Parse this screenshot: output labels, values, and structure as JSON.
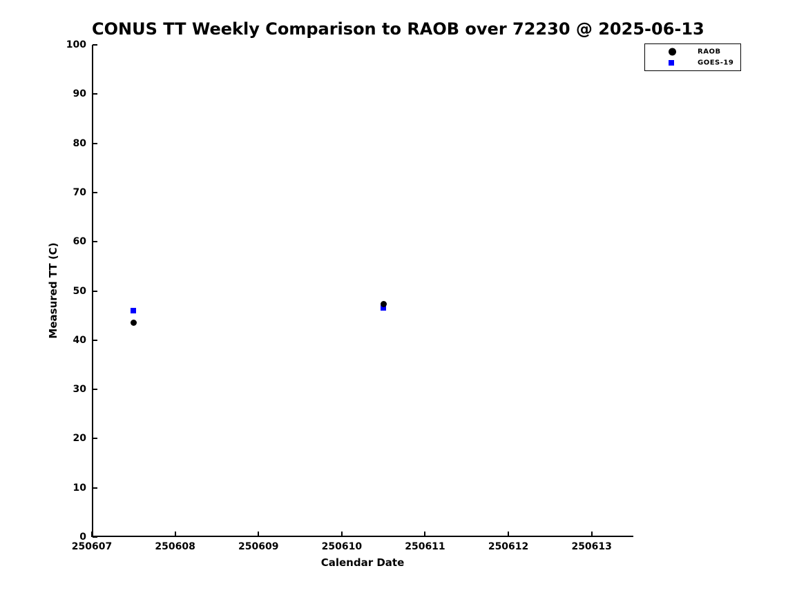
{
  "chart_data": {
    "type": "scatter",
    "title": "CONUS TT Weekly Comparison to RAOB over 72230 @ 2025-06-13",
    "xlabel": "Calendar Date",
    "ylabel": "Measured TT (C)",
    "xlim": [
      250607,
      250613.5
    ],
    "ylim": [
      0,
      100
    ],
    "x_ticks": [
      250607,
      250608,
      250609,
      250610,
      250611,
      250612,
      250613
    ],
    "y_ticks": [
      0,
      10,
      20,
      30,
      40,
      50,
      60,
      70,
      80,
      90,
      100
    ],
    "grid": false,
    "background_color": "#ffffff",
    "axis_color": "#000000",
    "text_color": "#000000",
    "legend_position": "outside-top-right",
    "series": [
      {
        "name": "GOES-19",
        "marker": "square",
        "color": "#0000ff",
        "marker_size": 8,
        "points": [
          {
            "x": 250607.5,
            "y": 46.0
          },
          {
            "x": 250610.5,
            "y": 46.5
          }
        ]
      },
      {
        "name": "RAOB",
        "marker": "circle",
        "color": "#000000",
        "marker_size": 9,
        "points": [
          {
            "x": 250607.5,
            "y": 43.5
          },
          {
            "x": 250610.5,
            "y": 47.3
          }
        ]
      }
    ],
    "legend": [
      {
        "label": "RAOB",
        "marker": "circle",
        "color": "#000000"
      },
      {
        "label": "GOES-19",
        "marker": "square",
        "color": "#0000ff"
      }
    ]
  }
}
